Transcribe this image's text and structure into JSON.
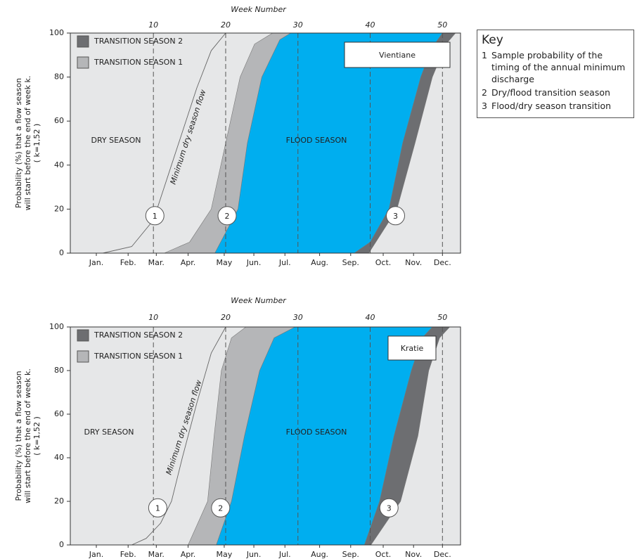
{
  "chart_data": [
    {
      "type": "area",
      "title": "Vientiane",
      "x2label": "Week Number",
      "ylabel": [
        "Probability (%) that a flow season",
        "will start before the end of week k.",
        "( k=1,52 )"
      ],
      "xlim": [
        -1.5,
        52.5
      ],
      "ylim": [
        0,
        100
      ],
      "yticks": [
        0,
        20,
        40,
        60,
        80,
        100
      ],
      "x2ticks": [
        10,
        20,
        30,
        40,
        50
      ],
      "xticks": [
        {
          "value": 2.1,
          "label": "Jan."
        },
        {
          "value": 6.5,
          "label": "Feb."
        },
        {
          "value": 10.4,
          "label": "Mar."
        },
        {
          "value": 14.8,
          "label": "Apr."
        },
        {
          "value": 19.8,
          "label": "May"
        },
        {
          "value": 23.9,
          "label": "Jun."
        },
        {
          "value": 28.2,
          "label": "Jul."
        },
        {
          "value": 33.0,
          "label": "Aug."
        },
        {
          "value": 37.3,
          "label": "Sep."
        },
        {
          "value": 41.8,
          "label": "Oct."
        },
        {
          "value": 46.0,
          "label": "Nov."
        },
        {
          "value": 50.0,
          "label": "Dec."
        }
      ],
      "grid": true,
      "series": [
        {
          "name": "TRANSITION SEASON 1",
          "color": "#b5b6b8",
          "legend": true,
          "x": [
            11.5,
            15,
            18,
            20,
            22,
            24,
            26.5
          ],
          "values": [
            0,
            5,
            20,
            50,
            80,
            95,
            100
          ]
        },
        {
          "name": "FLOOD SEASON",
          "color": "#00aeef",
          "legend": false,
          "x": [
            18.5,
            21.7,
            23,
            25,
            27.5,
            29
          ],
          "values": [
            0,
            20,
            50,
            80,
            97,
            100
          ]
        },
        {
          "name": "TRANSITION SEASON 2",
          "color": "#6d6e71",
          "legend": true,
          "x": [
            37.8,
            40,
            42.6,
            44.5,
            47,
            48.5,
            50
          ],
          "values": [
            0,
            5,
            20,
            50,
            80,
            93,
            100
          ]
        },
        {
          "name": "DRY SEASON",
          "color": "#e6e7e8",
          "legend": false,
          "x": [
            39.8,
            43.7,
            46.2,
            48.6,
            50.5,
            51.8
          ],
          "values": [
            0,
            20,
            50,
            80,
            95,
            100
          ]
        }
      ],
      "line": {
        "name": "Minimum dry season flow",
        "x": [
          3,
          7,
          10,
          12,
          14,
          16,
          18,
          20
        ],
        "values": [
          0,
          3,
          15,
          35,
          55,
          75,
          92,
          100
        ]
      },
      "annotations": [
        "1",
        "2",
        "3"
      ]
    },
    {
      "type": "area",
      "title": "Kratie",
      "x2label": "Week Number",
      "ylabel": [
        "Probability (%) that a flow season",
        "will start before the end of week k.",
        "( k=1,52 )"
      ],
      "xlim": [
        -1.5,
        52.5
      ],
      "ylim": [
        0,
        100
      ],
      "yticks": [
        0,
        20,
        40,
        60,
        80,
        100
      ],
      "x2ticks": [
        10,
        20,
        30,
        40,
        50
      ],
      "xticks": [
        {
          "value": 2.1,
          "label": "Jan."
        },
        {
          "value": 6.5,
          "label": "Feb."
        },
        {
          "value": 10.4,
          "label": "Mar."
        },
        {
          "value": 14.8,
          "label": "Apr."
        },
        {
          "value": 19.8,
          "label": "May"
        },
        {
          "value": 23.9,
          "label": "Jun."
        },
        {
          "value": 28.2,
          "label": "Jul."
        },
        {
          "value": 33.0,
          "label": "Aug."
        },
        {
          "value": 37.3,
          "label": "Sep."
        },
        {
          "value": 41.8,
          "label": "Oct."
        },
        {
          "value": 46.0,
          "label": "Nov."
        },
        {
          "value": 50.0,
          "label": "Dec."
        }
      ],
      "grid": true,
      "series": [
        {
          "name": "TRANSITION SEASON 1",
          "color": "#b5b6b8",
          "legend": true,
          "x": [
            14.8,
            17.5,
            18.4,
            19.4,
            20.8,
            22.8
          ],
          "values": [
            0,
            20,
            50,
            80,
            95,
            100
          ]
        },
        {
          "name": "FLOOD SEASON",
          "color": "#00aeef",
          "legend": false,
          "x": [
            18.7,
            20.8,
            22.6,
            24.7,
            26.7,
            29.6
          ],
          "values": [
            0,
            20,
            50,
            80,
            95,
            100
          ]
        },
        {
          "name": "TRANSITION SEASON 2",
          "color": "#6d6e71",
          "legend": true,
          "x": [
            39.2,
            41.3,
            43.3,
            45.7,
            47.2,
            48.6
          ],
          "values": [
            0,
            20,
            50,
            80,
            95,
            100
          ]
        },
        {
          "name": "DRY SEASON",
          "color": "#e6e7e8",
          "legend": false,
          "x": [
            40.1,
            44.2,
            46.6,
            48.1,
            49.6,
            51
          ],
          "values": [
            0,
            20,
            50,
            80,
            95,
            100
          ]
        }
      ],
      "line": {
        "name": "Minimum dry season flow",
        "x": [
          7,
          9,
          11,
          12.5,
          14,
          16,
          18,
          20
        ],
        "values": [
          0,
          3,
          10,
          20,
          40,
          65,
          88,
          100
        ]
      },
      "annotations": [
        "1",
        "2",
        "3"
      ]
    }
  ],
  "key": {
    "title": "Key",
    "items": [
      {
        "number": "1",
        "text": "Sample probability of the timing of the annual minimum discharge"
      },
      {
        "number": "2",
        "text": "Dry/flood transition season"
      },
      {
        "number": "3",
        "text": "Flood/dry season transition"
      }
    ]
  }
}
